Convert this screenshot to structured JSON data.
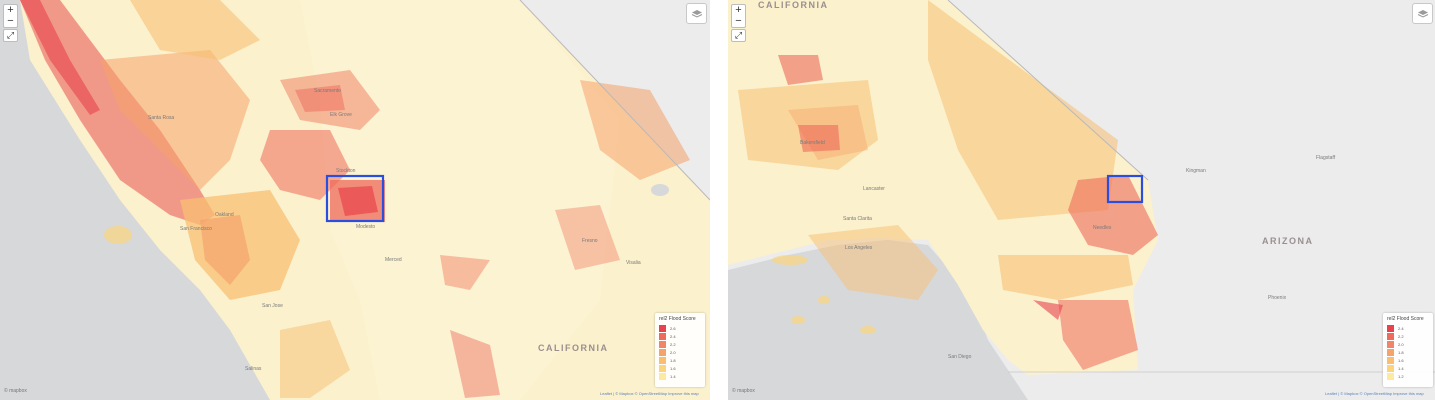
{
  "left_map": {
    "state_label": "CALIFORNIA",
    "legend": {
      "title": "rel2 Flood Score",
      "items": [
        {
          "label": "2.6",
          "color": "#e8434c"
        },
        {
          "label": "2.4",
          "color": "#ee6a5a"
        },
        {
          "label": "2.2",
          "color": "#f1856a"
        },
        {
          "label": "2.0",
          "color": "#f5a36c"
        },
        {
          "label": "1.8",
          "color": "#f8bf73"
        },
        {
          "label": "1.6",
          "color": "#fbd57d"
        },
        {
          "label": "1.4",
          "color": "#fde9a0"
        }
      ]
    },
    "attribution": "Leaflet | © Mapbox © OpenStreetMap Improve this map",
    "logo": "© mapbox",
    "places": [
      {
        "name": "Santa Rosa"
      },
      {
        "name": "Sacramento"
      },
      {
        "name": "Elk Grove"
      },
      {
        "name": "Stockton"
      },
      {
        "name": "San Francisco"
      },
      {
        "name": "Oakland"
      },
      {
        "name": "San Jose"
      },
      {
        "name": "Modesto"
      },
      {
        "name": "Merced"
      },
      {
        "name": "Fresno"
      },
      {
        "name": "Visalia"
      },
      {
        "name": "Salinas"
      }
    ]
  },
  "right_map": {
    "state_label": "CALIFORNIA",
    "region_label": "ARIZONA",
    "legend": {
      "title": "rel2 Flood Score",
      "items": [
        {
          "label": "2.4",
          "color": "#e8434c"
        },
        {
          "label": "2.2",
          "color": "#ee6a5a"
        },
        {
          "label": "2.0",
          "color": "#f1856a"
        },
        {
          "label": "1.8",
          "color": "#f5a36c"
        },
        {
          "label": "1.6",
          "color": "#f8bf73"
        },
        {
          "label": "1.4",
          "color": "#fbd57d"
        },
        {
          "label": "1.2",
          "color": "#fde9a0"
        }
      ]
    },
    "attribution": "Leaflet | © Mapbox © OpenStreetMap Improve this map",
    "logo": "© mapbox",
    "places": [
      {
        "name": "Los Angeles"
      },
      {
        "name": "Santa Clarita"
      },
      {
        "name": "Lancaster"
      },
      {
        "name": "San Diego"
      },
      {
        "name": "Flagstaff"
      },
      {
        "name": "Phoenix"
      },
      {
        "name": "Kingman"
      },
      {
        "name": "Needles"
      },
      {
        "name": "Bakersfield"
      }
    ]
  },
  "controls": {
    "zoom_in": "+",
    "zoom_out": "−",
    "fullscreen": "⤢"
  }
}
